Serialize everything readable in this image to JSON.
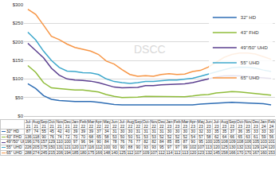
{
  "chart_data": {
    "type": "line",
    "categories": [
      "Jul-21",
      "Aug-21",
      "Sep-21",
      "Oct-21",
      "Nov-21",
      "Dec-21",
      "Jan-22",
      "Feb-22",
      "Mar-22",
      "Apr-22",
      "May-22",
      "Jun-22",
      "Jul-22",
      "Aug-22",
      "Sep-22",
      "Oct-22",
      "Nov-22",
      "Dec-22",
      "Jan-23",
      "Feb-23",
      "Mar-23",
      "Apr-23",
      "May-23",
      "Jun-23",
      "Jul-23",
      "Aug-23",
      "Sep-23",
      "Oct-23",
      "Nov-23",
      "Dec-23",
      "Jan-24",
      "Feb-24"
    ],
    "series": [
      {
        "name": "32\" HD",
        "color": "#2e6db4",
        "values": [
          87,
          74,
          55,
          45,
          42,
          40,
          39,
          39,
          39,
          37,
          34,
          31,
          30,
          30,
          31,
          31,
          31,
          31,
          30,
          30,
          30,
          30,
          32,
          33,
          35,
          35,
          37,
          36,
          35,
          33,
          33,
          30
        ]
      },
      {
        "name": "43\" FHD",
        "color": "#8fbc3a",
        "values": [
          136,
          118,
          90,
          76,
          74,
          72,
          70,
          70,
          68,
          65,
          58,
          53,
          50,
          50,
          51,
          53,
          53,
          52,
          52,
          52,
          52,
          54,
          57,
          58,
          62,
          64,
          66,
          65,
          63,
          61,
          59,
          56
        ]
      },
      {
        "name": "49\"/50\" UHD",
        "color": "#5b3f8f",
        "values": [
          196,
          176,
          157,
          129,
          110,
          100,
          97,
          96,
          94,
          90,
          84,
          78,
          76,
          76,
          77,
          82,
          82,
          84,
          85,
          85,
          87,
          90,
          95,
          100,
          105,
          108,
          109,
          108,
          106,
          105,
          103,
          101
        ]
      },
      {
        "name": "55\" UHD",
        "color": "#3ea8cc",
        "values": [
          226,
          205,
          175,
          150,
          131,
          121,
          120,
          117,
          116,
          112,
          100,
          93,
          90,
          88,
          90,
          93,
          93,
          95,
          97,
          97,
          99,
          102,
          107,
          113,
          120,
          125,
          130,
          132,
          131,
          129,
          124,
          120
        ]
      },
      {
        "name": "65\" UHD",
        "color": "#f79646",
        "values": [
          288,
          274,
          245,
          215,
          206,
          194,
          185,
          180,
          175,
          166,
          148,
          140,
          125,
          112,
          107,
          109,
          107,
          112,
          114,
          112,
          113,
          120,
          123,
          132,
          145,
          158,
          166,
          170,
          170,
          167,
          160,
          153
        ]
      }
    ],
    "ylim": [
      0,
      300
    ],
    "yticks": [
      {
        "value": 0,
        "label": "$0"
      },
      {
        "value": 50,
        "label": "$50"
      },
      {
        "value": 100,
        "label": "$100"
      },
      {
        "value": 150,
        "label": "$150"
      },
      {
        "value": 200,
        "label": "$200"
      },
      {
        "value": 250,
        "label": "$250"
      },
      {
        "value": 300,
        "label": "$300"
      }
    ],
    "grid": true,
    "legend": "top right",
    "tick_labels": "y",
    "annotations": [
      {
        "text": "DSCC"
      }
    ]
  }
}
